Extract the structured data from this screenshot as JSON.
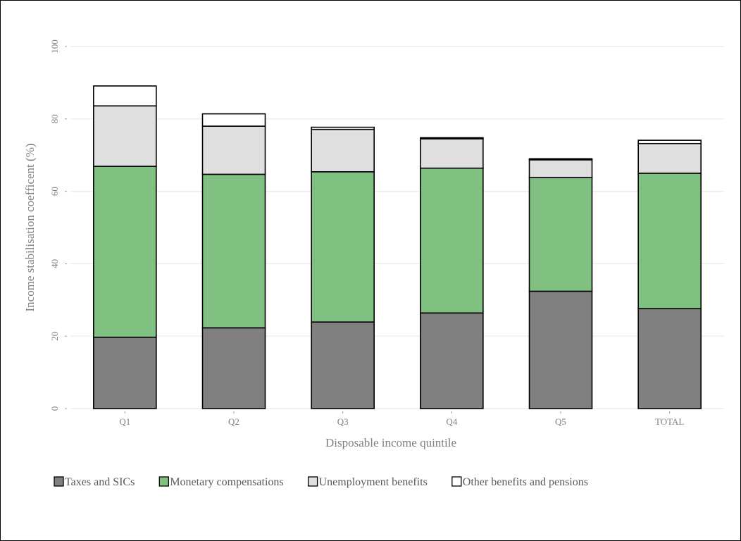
{
  "chart_data": {
    "type": "bar",
    "stacked": true,
    "title": "",
    "xlabel": "Disposable income quintile",
    "ylabel": "Income stabilisation coefficent (%)",
    "ylim": [
      0,
      100
    ],
    "yticks": [
      0,
      20,
      40,
      60,
      80,
      100
    ],
    "grid": true,
    "legend_position": "bottom",
    "categories": [
      "Q1",
      "Q2",
      "Q3",
      "Q4",
      "Q5",
      "TOTAL"
    ],
    "series": [
      {
        "name": "Taxes and SICs",
        "color": "#808080",
        "values": [
          19.7,
          22.3,
          23.9,
          26.4,
          32.4,
          27.6
        ]
      },
      {
        "name": "Monetary compensations",
        "color": "#80c080",
        "values": [
          47.2,
          42.4,
          41.5,
          40.0,
          31.4,
          37.4
        ]
      },
      {
        "name": "Unemployment benefits",
        "color": "#dfdfdf",
        "values": [
          16.7,
          13.3,
          11.7,
          8.1,
          4.9,
          8.2
        ]
      },
      {
        "name": "Other benefits and pensions",
        "color": "#ffffff",
        "values": [
          5.5,
          3.4,
          0.6,
          0.3,
          0.3,
          0.9
        ]
      }
    ]
  }
}
